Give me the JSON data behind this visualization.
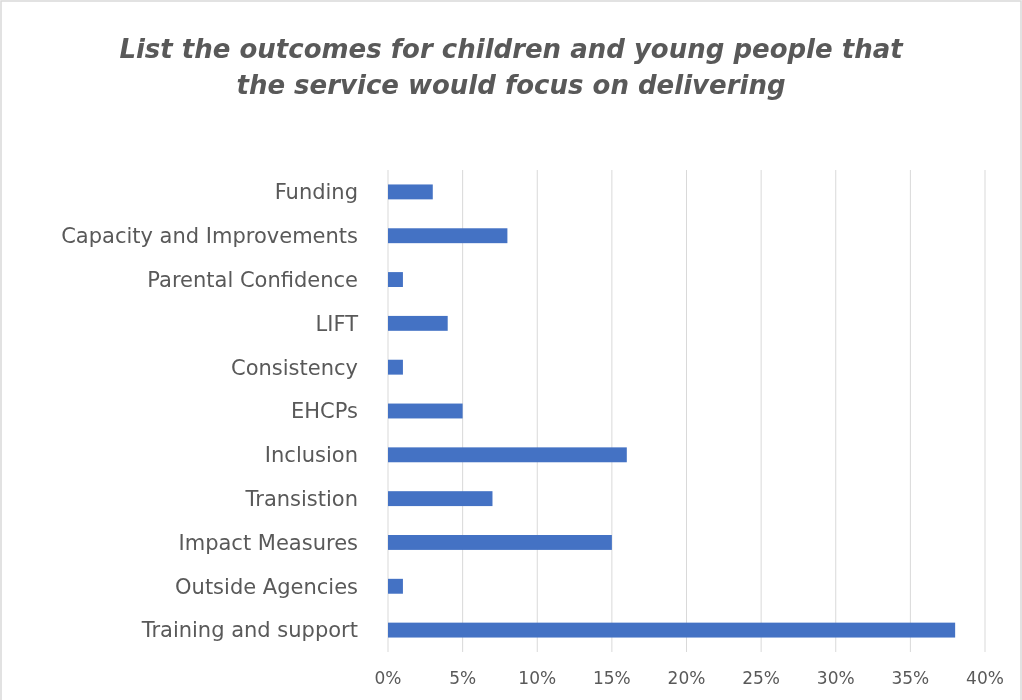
{
  "chart_data": {
    "type": "bar",
    "orientation": "horizontal",
    "title": "List the outcomes for children and young people that the service would focus on delivering",
    "categories": [
      "Funding",
      "Capacity and Improvements",
      "Parental Confidence",
      "LIFT",
      "Consistency",
      "EHCPs",
      "Inclusion",
      "Transistion",
      "Impact Measures",
      "Outside Agencies",
      "Training and support"
    ],
    "values": [
      3,
      8,
      1,
      4,
      1,
      5,
      16,
      7,
      15,
      1,
      38
    ],
    "color": "#4472c4",
    "xlim": [
      0,
      40
    ],
    "xticks": [
      {
        "value": 0,
        "label": "0%"
      },
      {
        "value": 5,
        "label": "5%"
      },
      {
        "value": 10,
        "label": "10%"
      },
      {
        "value": 15,
        "label": "15%"
      },
      {
        "value": 20,
        "label": "20%"
      },
      {
        "value": 25,
        "label": "25%"
      },
      {
        "value": 30,
        "label": "30%"
      },
      {
        "value": 35,
        "label": "35%"
      },
      {
        "value": 40,
        "label": "40%"
      }
    ],
    "grid": "x"
  }
}
